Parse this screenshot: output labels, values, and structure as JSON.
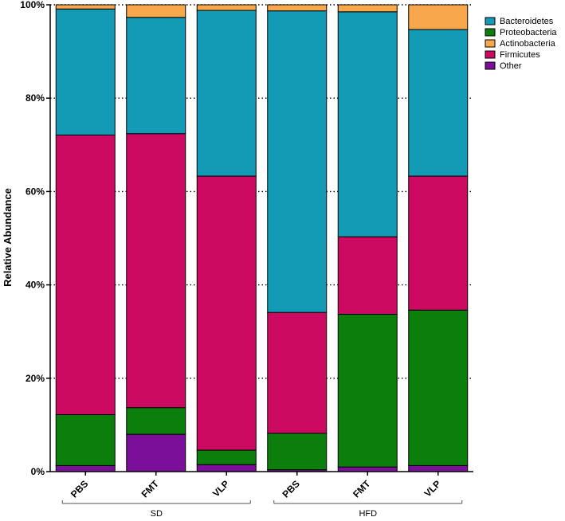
{
  "chart_data": {
    "type": "bar",
    "stacked": true,
    "categories": [
      "PBS",
      "FMT",
      "VLP",
      "PBS",
      "FMT",
      "VLP"
    ],
    "groups": [
      {
        "label": "SD",
        "categories": [
          0,
          1,
          2
        ]
      },
      {
        "label": "HFD",
        "categories": [
          3,
          4,
          5
        ]
      }
    ],
    "ylabel": "Relative Abundance",
    "ylim": [
      0,
      100
    ],
    "yticks": [
      {
        "value": 0,
        "label": "0%"
      },
      {
        "value": 20,
        "label": "20%"
      },
      {
        "value": 40,
        "label": "40%"
      },
      {
        "value": 60,
        "label": "60%"
      },
      {
        "value": 80,
        "label": "80%"
      },
      {
        "value": 100,
        "label": "100%"
      }
    ],
    "grid": "horizontal-dotted",
    "legend_position": "top-right",
    "legend_order": [
      "Bacteroidetes",
      "Proteobacteria",
      "Actinobacteria",
      "Firmicutes",
      "Other"
    ],
    "series": [
      {
        "name": "Other",
        "color": "#7b0f9a",
        "values": [
          1.3,
          8.0,
          1.5,
          0.4,
          1.0,
          1.3
        ]
      },
      {
        "name": "Proteobacteria",
        "color": "#0c7e0c",
        "values": [
          10.9,
          5.7,
          3.1,
          7.8,
          32.7,
          33.3
        ]
      },
      {
        "name": "Firmicutes",
        "color": "#cc0a62",
        "values": [
          59.9,
          58.7,
          58.7,
          25.9,
          16.6,
          28.7
        ]
      },
      {
        "name": "Bacteroidetes",
        "color": "#139ab5",
        "values": [
          27.0,
          24.9,
          35.5,
          64.6,
          48.2,
          31.4
        ]
      },
      {
        "name": "Actinobacteria",
        "color": "#f9a74c",
        "values": [
          0.9,
          2.7,
          1.2,
          1.3,
          1.5,
          5.3
        ]
      }
    ]
  }
}
